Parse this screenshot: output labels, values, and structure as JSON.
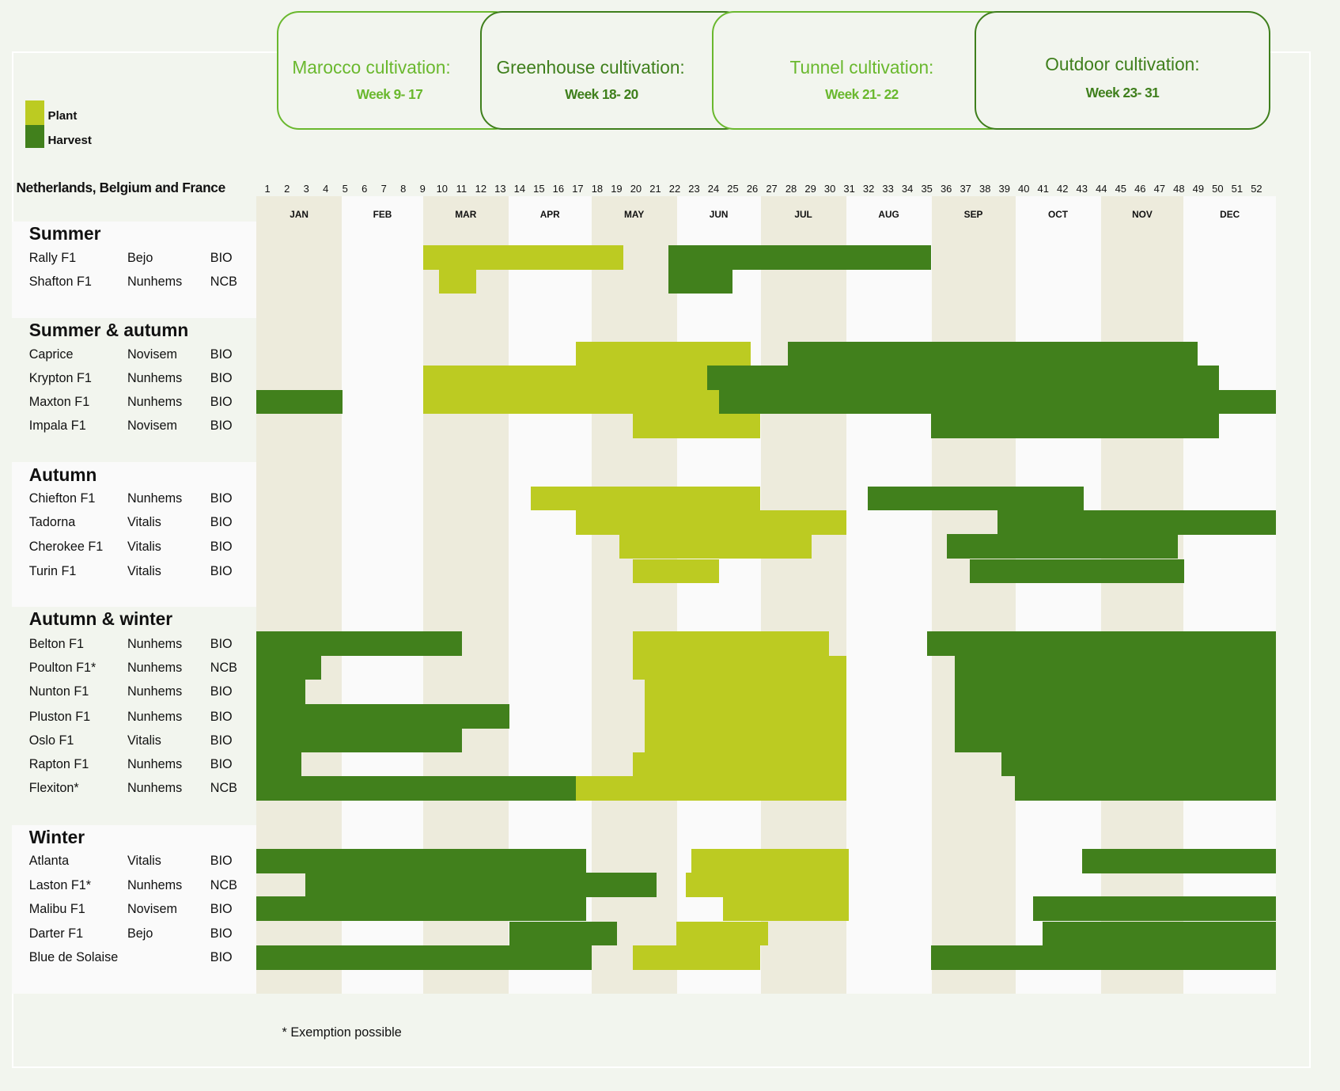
{
  "colors": {
    "plant": "#bccb22",
    "harvest": "#41801c",
    "month_shade": "#edebdc",
    "month_plain": "#fafafa",
    "accent_light": "#6ab82e",
    "accent_dark": "#3f7f1c"
  },
  "header_boxes": [
    {
      "title": "Marocco cultivation:",
      "weeks": "Week 9- 17",
      "style": "light"
    },
    {
      "title": "Greenhouse cultivation:",
      "weeks": "Week 18- 20",
      "style": "dark"
    },
    {
      "title": "Tunnel cultivation:",
      "weeks": "Week 21- 22",
      "style": "light"
    },
    {
      "title": "Outdoor cultivation:",
      "weeks": "Week 23- 31",
      "style": "dark"
    }
  ],
  "legend": {
    "plant": "Plant",
    "harvest": "Harvest"
  },
  "footnote": "* Exemption possible",
  "chart_data": {
    "type": "gantt",
    "title": "Netherlands, Belgium and France",
    "x_unit": "week",
    "xlim": [
      0,
      52
    ],
    "week_ticks": [
      1,
      2,
      3,
      4,
      5,
      6,
      7,
      8,
      9,
      10,
      11,
      12,
      13,
      14,
      15,
      16,
      17,
      18,
      19,
      20,
      21,
      22,
      23,
      24,
      25,
      26,
      27,
      28,
      29,
      30,
      31,
      32,
      33,
      34,
      35,
      36,
      37,
      38,
      39,
      40,
      41,
      42,
      43,
      44,
      45,
      46,
      47,
      48,
      49,
      50,
      51,
      52
    ],
    "months": [
      "JAN",
      "FEB",
      "MAR",
      "APR",
      "MAY",
      "JUN",
      "JUL",
      "AUG",
      "SEP",
      "OCT",
      "NOV",
      "DEC"
    ],
    "sections": [
      {
        "name": "Summer",
        "rows": [
          {
            "variety": "Rally F1",
            "supplier": "Bejo",
            "type": "BIO",
            "bars": [
              [
                "plant",
                8.5,
                18.7
              ],
              [
                "harvest",
                21.0,
                34.4
              ]
            ]
          },
          {
            "variety": "Shafton F1",
            "supplier": "Nunhems",
            "type": "NCB",
            "bars": [
              [
                "plant",
                9.3,
                11.2
              ],
              [
                "harvest",
                21.0,
                24.3
              ]
            ]
          }
        ]
      },
      {
        "name": "Summer & autumn",
        "rows": [
          {
            "variety": "Caprice",
            "supplier": "Novisem",
            "type": "BIO",
            "bars": [
              [
                "plant",
                16.3,
                25.2
              ],
              [
                "harvest",
                27.1,
                48.0
              ]
            ]
          },
          {
            "variety": "Krypton F1",
            "supplier": "Nunhems",
            "type": "BIO",
            "bars": [
              [
                "plant",
                8.5,
                23.0
              ],
              [
                "harvest",
                23.0,
                49.1
              ]
            ]
          },
          {
            "variety": "Maxton F1",
            "supplier": "Nunhems",
            "type": "BIO",
            "bars": [
              [
                "harvest",
                0,
                4.4
              ],
              [
                "plant",
                8.5,
                23.6
              ],
              [
                "harvest",
                23.6,
                52
              ]
            ]
          },
          {
            "variety": "Impala F1",
            "supplier": "Novisem",
            "type": "BIO",
            "bars": [
              [
                "plant",
                19.2,
                25.7
              ],
              [
                "harvest",
                34.4,
                49.1
              ]
            ]
          }
        ]
      },
      {
        "name": "Autumn",
        "rows": [
          {
            "variety": "Chiefton F1",
            "supplier": "Nunhems",
            "type": "BIO",
            "bars": [
              [
                "plant",
                14.0,
                25.7
              ],
              [
                "harvest",
                31.2,
                42.2
              ]
            ]
          },
          {
            "variety": "Tadorna",
            "supplier": "Vitalis",
            "type": "BIO",
            "bars": [
              [
                "plant",
                16.3,
                30.1
              ],
              [
                "harvest",
                37.8,
                52
              ]
            ]
          },
          {
            "variety": "Cherokee F1",
            "supplier": "Vitalis",
            "type": "BIO",
            "bars": [
              [
                "plant",
                18.5,
                28.3
              ],
              [
                "harvest",
                35.2,
                47.0
              ]
            ]
          },
          {
            "variety": "Turin F1",
            "supplier": "Vitalis",
            "type": "BIO",
            "bars": [
              [
                "plant",
                19.2,
                23.6
              ],
              [
                "harvest",
                36.4,
                47.3
              ]
            ]
          }
        ]
      },
      {
        "name": "Autumn & winter",
        "rows": [
          {
            "variety": "Belton F1",
            "supplier": "Nunhems",
            "type": "BIO",
            "bars": [
              [
                "harvest",
                0,
                10.5
              ],
              [
                "plant",
                19.2,
                29.2
              ],
              [
                "harvest",
                34.2,
                52
              ]
            ]
          },
          {
            "variety": "Poulton F1*",
            "supplier": "Nunhems",
            "type": "NCB",
            "bars": [
              [
                "harvest",
                0,
                3.3
              ],
              [
                "plant",
                19.2,
                30.1
              ],
              [
                "harvest",
                35.6,
                52
              ]
            ]
          },
          {
            "variety": "Nunton F1",
            "supplier": "Nunhems",
            "type": "BIO",
            "bars": [
              [
                "harvest",
                0,
                2.5
              ],
              [
                "plant",
                19.8,
                30.1
              ],
              [
                "harvest",
                35.6,
                52
              ]
            ]
          },
          {
            "variety": "Pluston F1",
            "supplier": "Nunhems",
            "type": "BIO",
            "bars": [
              [
                "harvest",
                0,
                12.9
              ],
              [
                "plant",
                19.8,
                30.1
              ],
              [
                "harvest",
                35.6,
                52
              ]
            ]
          },
          {
            "variety": "Oslo F1",
            "supplier": "Vitalis",
            "type": "BIO",
            "bars": [
              [
                "harvest",
                0,
                10.5
              ],
              [
                "plant",
                19.8,
                30.1
              ],
              [
                "harvest",
                35.6,
                52
              ]
            ]
          },
          {
            "variety": "Rapton F1",
            "supplier": "Nunhems",
            "type": "BIO",
            "bars": [
              [
                "harvest",
                0,
                2.3
              ],
              [
                "plant",
                19.2,
                30.1
              ],
              [
                "harvest",
                38.0,
                52
              ]
            ]
          },
          {
            "variety": "Flexiton*",
            "supplier": "Nunhems",
            "type": "NCB",
            "bars": [
              [
                "harvest",
                0,
                16.3
              ],
              [
                "plant",
                16.3,
                30.1
              ],
              [
                "harvest",
                38.7,
                52
              ]
            ]
          }
        ]
      },
      {
        "name": "Winter",
        "rows": [
          {
            "variety": "Atlanta",
            "supplier": "Vitalis",
            "type": "BIO",
            "bars": [
              [
                "harvest",
                0,
                16.8
              ],
              [
                "plant",
                22.2,
                30.2
              ],
              [
                "harvest",
                42.1,
                52
              ]
            ]
          },
          {
            "variety": "Laston F1*",
            "supplier": "Nunhems",
            "type": "NCB",
            "bars": [
              [
                "harvest",
                2.5,
                20.4
              ],
              [
                "plant",
                21.9,
                30.2
              ]
            ]
          },
          {
            "variety": "Malibu F1",
            "supplier": "Novisem",
            "type": "BIO",
            "bars": [
              [
                "harvest",
                0,
                16.8
              ],
              [
                "plant",
                23.8,
                30.2
              ],
              [
                "harvest",
                39.6,
                52
              ]
            ]
          },
          {
            "variety": "Darter F1",
            "supplier": "Bejo",
            "type": "BIO",
            "bars": [
              [
                "harvest",
                12.9,
                18.4
              ],
              [
                "plant",
                21.4,
                26.1
              ],
              [
                "harvest",
                40.1,
                52
              ]
            ]
          },
          {
            "variety": "Blue de Solaise",
            "supplier": "",
            "type": "BIO",
            "bars": [
              [
                "harvest",
                0,
                17.1
              ],
              [
                "plant",
                19.2,
                25.7
              ],
              [
                "harvest",
                34.4,
                52
              ]
            ]
          }
        ]
      }
    ]
  }
}
